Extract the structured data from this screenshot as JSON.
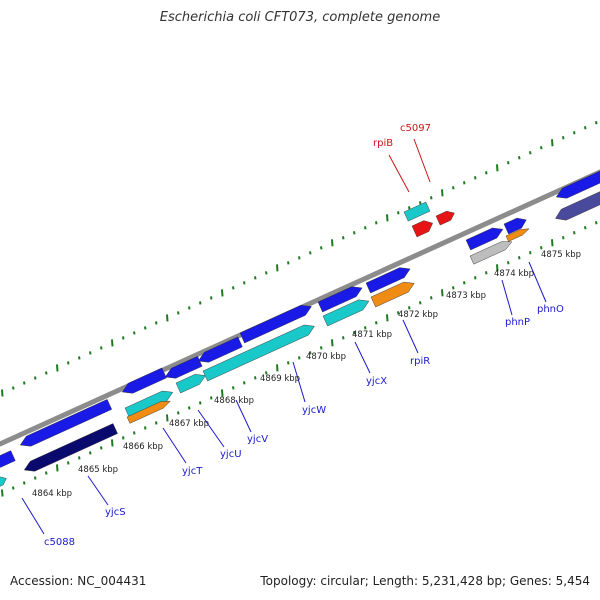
{
  "title": "Escherichia coli CFT073, complete genome",
  "footer": {
    "accession": "Accession: NC_004431",
    "topology": "Topology: circular; Length: 5,231,428 bp; Genes: 5,454"
  },
  "colors": {
    "backbone": "#8c8c8c",
    "tick": "#1e7a1e",
    "blue": "#1a1ae6",
    "dark_blue": "#0a0a6e",
    "cyan": "#19c8c8",
    "orange": "#f08c14",
    "red": "#e61414",
    "gray": "#bdbdbd",
    "slate": "#4a4a9c",
    "label_blue": "#1a1acc",
    "label_red": "#cc1414"
  },
  "scale_labels": [
    "4864 kbp",
    "4865 kbp",
    "4866 kbp",
    "4867 kbp",
    "4868 kbp",
    "4869 kbp",
    "4870 kbp",
    "4871 kbp",
    "4872 kbp",
    "4873 kbp",
    "4874 kbp",
    "4875 kbp"
  ],
  "gene_labels": [
    {
      "text": "c5088",
      "color": "label_blue"
    },
    {
      "text": "yjcS",
      "color": "label_blue"
    },
    {
      "text": "yjcT",
      "color": "label_blue"
    },
    {
      "text": "yjcU",
      "color": "label_blue"
    },
    {
      "text": "yjcV",
      "color": "label_blue"
    },
    {
      "text": "yjcW",
      "color": "label_blue"
    },
    {
      "text": "yjcX",
      "color": "label_blue"
    },
    {
      "text": "rpiR",
      "color": "label_blue"
    },
    {
      "text": "phnP",
      "color": "label_blue"
    },
    {
      "text": "phnO",
      "color": "label_blue"
    },
    {
      "text": "rpiB",
      "color": "label_red"
    },
    {
      "text": "c5097",
      "color": "label_red"
    }
  ]
}
